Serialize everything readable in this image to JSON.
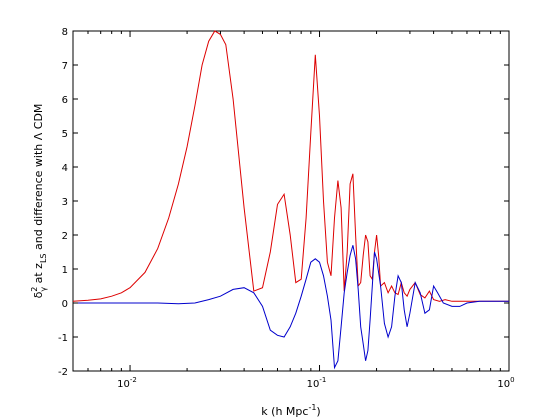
{
  "chart_data": {
    "type": "line",
    "x_scale": "log",
    "xlim": [
      0.005,
      1
    ],
    "ylim": [
      -2,
      8
    ],
    "grid": false,
    "x_ticks": [
      {
        "value": 0.01,
        "base": "10",
        "exp": "-2"
      },
      {
        "value": 0.1,
        "base": "10",
        "exp": "-1"
      },
      {
        "value": 1,
        "base": "10",
        "exp": "0"
      }
    ],
    "y_ticks": [
      -2,
      -1,
      0,
      1,
      2,
      3,
      4,
      5,
      6,
      7,
      8
    ],
    "xlabel": {
      "pre": "k (h Mpc",
      "sup": "-1",
      "post": ")"
    },
    "ylabel": {
      "delta": "δ",
      "sup": "2",
      "sub1": "γ",
      "mid": " at z",
      "sub2": "LS",
      "post": "  and difference with Λ CDM"
    },
    "series": [
      {
        "color": "#dd0000",
        "x": [
          0.005,
          0.006,
          0.007,
          0.008,
          0.009,
          0.01,
          0.012,
          0.014,
          0.016,
          0.018,
          0.02,
          0.022,
          0.024,
          0.026,
          0.028,
          0.03,
          0.032,
          0.035,
          0.04,
          0.045,
          0.05,
          0.055,
          0.06,
          0.065,
          0.07,
          0.075,
          0.08,
          0.085,
          0.09,
          0.095,
          0.1,
          0.105,
          0.11,
          0.115,
          0.12,
          0.125,
          0.13,
          0.135,
          0.14,
          0.145,
          0.15,
          0.155,
          0.16,
          0.165,
          0.17,
          0.175,
          0.18,
          0.185,
          0.19,
          0.195,
          0.2,
          0.205,
          0.21,
          0.22,
          0.23,
          0.24,
          0.25,
          0.26,
          0.27,
          0.28,
          0.29,
          0.3,
          0.32,
          0.34,
          0.36,
          0.38,
          0.4,
          0.43,
          0.46,
          0.5,
          0.55,
          0.6,
          0.7,
          0.8,
          0.9,
          1.0
        ],
        "y": [
          0.05,
          0.08,
          0.12,
          0.2,
          0.3,
          0.45,
          0.9,
          1.6,
          2.5,
          3.5,
          4.6,
          5.8,
          7.0,
          7.7,
          8.0,
          7.9,
          7.6,
          6.0,
          2.8,
          0.35,
          0.45,
          1.5,
          2.9,
          3.2,
          2.0,
          0.6,
          0.7,
          2.5,
          5.0,
          7.3,
          5.5,
          3.0,
          1.2,
          0.8,
          2.5,
          3.6,
          2.8,
          0.35,
          1.5,
          3.5,
          3.8,
          2.0,
          0.5,
          0.6,
          1.4,
          2.0,
          1.8,
          0.8,
          0.7,
          1.5,
          2.0,
          1.4,
          0.5,
          0.6,
          0.3,
          0.5,
          0.3,
          0.25,
          0.6,
          0.3,
          0.2,
          0.4,
          0.6,
          0.25,
          0.15,
          0.35,
          0.1,
          0.05,
          0.1,
          0.05,
          0.05,
          0.05,
          0.05,
          0.05,
          0.05,
          0.05
        ]
      },
      {
        "color": "#0000cc",
        "x": [
          0.005,
          0.008,
          0.01,
          0.014,
          0.018,
          0.022,
          0.026,
          0.03,
          0.035,
          0.04,
          0.045,
          0.05,
          0.055,
          0.06,
          0.065,
          0.07,
          0.075,
          0.08,
          0.085,
          0.09,
          0.095,
          0.1,
          0.105,
          0.11,
          0.115,
          0.12,
          0.125,
          0.13,
          0.135,
          0.14,
          0.145,
          0.15,
          0.155,
          0.16,
          0.165,
          0.17,
          0.175,
          0.18,
          0.185,
          0.19,
          0.195,
          0.2,
          0.21,
          0.22,
          0.23,
          0.24,
          0.25,
          0.26,
          0.27,
          0.28,
          0.29,
          0.3,
          0.32,
          0.34,
          0.36,
          0.38,
          0.4,
          0.42,
          0.45,
          0.5,
          0.55,
          0.6,
          0.7,
          0.8,
          0.9,
          1.0
        ],
        "y": [
          0.0,
          0.0,
          0.0,
          0.0,
          -0.02,
          0.0,
          0.1,
          0.2,
          0.4,
          0.45,
          0.3,
          -0.1,
          -0.8,
          -0.95,
          -1.0,
          -0.7,
          -0.3,
          0.2,
          0.7,
          1.2,
          1.3,
          1.2,
          0.8,
          0.2,
          -0.5,
          -1.9,
          -1.7,
          -0.7,
          0.3,
          0.9,
          1.4,
          1.7,
          1.3,
          0.4,
          -0.7,
          -1.2,
          -1.7,
          -1.4,
          -0.5,
          0.5,
          1.5,
          1.3,
          0.5,
          -0.6,
          -1.0,
          -0.7,
          0.2,
          0.8,
          0.6,
          -0.2,
          -0.7,
          -0.3,
          0.6,
          0.3,
          -0.3,
          -0.2,
          0.5,
          0.3,
          0.0,
          -0.1,
          -0.1,
          0.0,
          0.05,
          0.05,
          0.05,
          0.05
        ]
      }
    ]
  }
}
